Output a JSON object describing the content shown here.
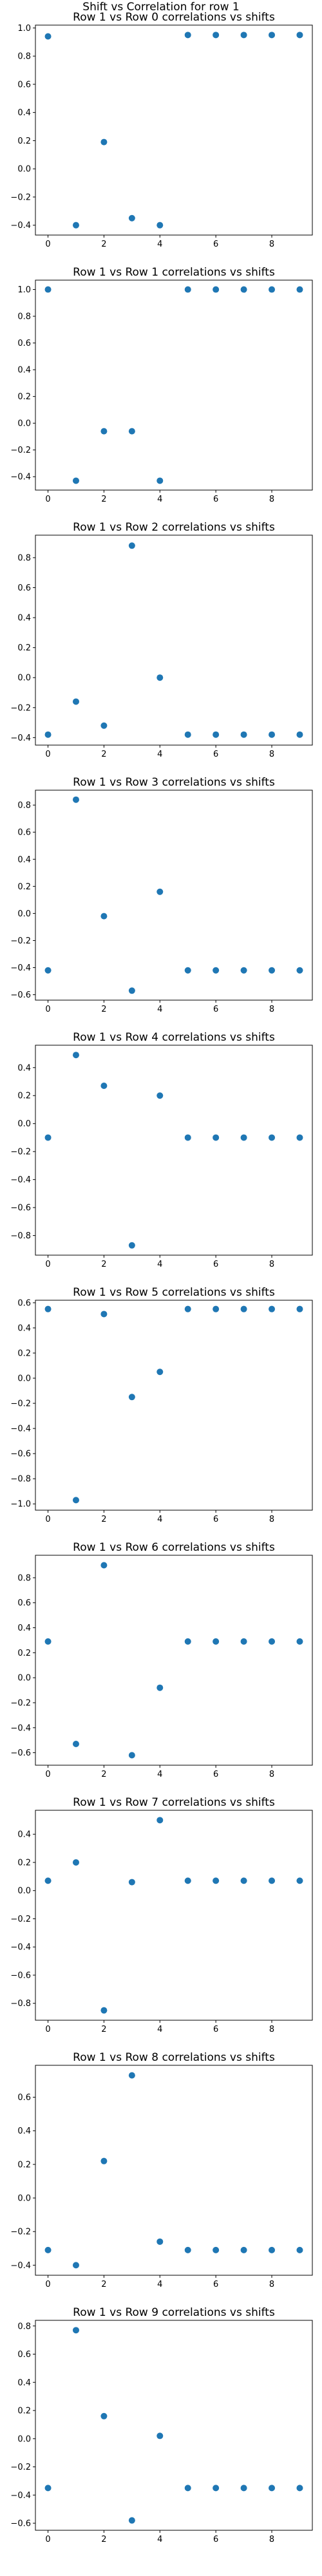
{
  "figure": {
    "suptitle": "Shift vs Correlation for row 1",
    "marker_color": "#1f77b4"
  },
  "chart_data": [
    {
      "type": "scatter",
      "title": "Row 1 vs Row 0 correlations vs shifts",
      "x": [
        0,
        1,
        2,
        3,
        4,
        5,
        6,
        7,
        8,
        9
      ],
      "y": [
        0.94,
        -0.4,
        0.19,
        -0.35,
        -0.4,
        0.95,
        0.95,
        0.95,
        0.95,
        0.95
      ],
      "ylim": [
        -0.47,
        1.02
      ],
      "yticks": [
        -0.4,
        -0.2,
        0.0,
        0.2,
        0.4,
        0.6,
        0.8,
        1.0
      ],
      "xticks": [
        0,
        2,
        4,
        6,
        8
      ],
      "xlim": [
        -0.45,
        9.45
      ],
      "grid": false
    },
    {
      "type": "scatter",
      "title": "Row 1 vs Row 1 correlations vs shifts",
      "x": [
        0,
        1,
        2,
        3,
        4,
        5,
        6,
        7,
        8,
        9
      ],
      "y": [
        1.0,
        -0.43,
        -0.06,
        -0.06,
        -0.43,
        1.0,
        1.0,
        1.0,
        1.0,
        1.0
      ],
      "ylim": [
        -0.5,
        1.07
      ],
      "yticks": [
        -0.4,
        -0.2,
        0.0,
        0.2,
        0.4,
        0.6,
        0.8,
        1.0
      ],
      "xticks": [
        0,
        2,
        4,
        6,
        8
      ],
      "xlim": [
        -0.45,
        9.45
      ],
      "grid": false
    },
    {
      "type": "scatter",
      "title": "Row 1 vs Row 2 correlations vs shifts",
      "x": [
        0,
        1,
        2,
        3,
        4,
        5,
        6,
        7,
        8,
        9
      ],
      "y": [
        -0.38,
        -0.16,
        -0.32,
        0.88,
        0.0,
        -0.38,
        -0.38,
        -0.38,
        -0.38,
        -0.38
      ],
      "ylim": [
        -0.45,
        0.95
      ],
      "yticks": [
        -0.4,
        -0.2,
        0.0,
        0.2,
        0.4,
        0.6,
        0.8
      ],
      "xticks": [
        0,
        2,
        4,
        6,
        8
      ],
      "xlim": [
        -0.45,
        9.45
      ],
      "grid": false
    },
    {
      "type": "scatter",
      "title": "Row 1 vs Row 3 correlations vs shifts",
      "x": [
        0,
        1,
        2,
        3,
        4,
        5,
        6,
        7,
        8,
        9
      ],
      "y": [
        -0.42,
        0.84,
        -0.02,
        -0.57,
        0.16,
        -0.42,
        -0.42,
        -0.42,
        -0.42,
        -0.42
      ],
      "ylim": [
        -0.64,
        0.91
      ],
      "yticks": [
        -0.6,
        -0.4,
        -0.2,
        0.0,
        0.2,
        0.4,
        0.6,
        0.8
      ],
      "xticks": [
        0,
        2,
        4,
        6,
        8
      ],
      "xlim": [
        -0.45,
        9.45
      ],
      "grid": false
    },
    {
      "type": "scatter",
      "title": "Row 1 vs Row 4 correlations vs shifts",
      "x": [
        0,
        1,
        2,
        3,
        4,
        5,
        6,
        7,
        8,
        9
      ],
      "y": [
        -0.1,
        0.49,
        0.27,
        -0.87,
        0.2,
        -0.1,
        -0.1,
        -0.1,
        -0.1,
        -0.1
      ],
      "ylim": [
        -0.94,
        0.56
      ],
      "yticks": [
        -0.8,
        -0.6,
        -0.4,
        -0.2,
        0.0,
        0.2,
        0.4
      ],
      "xticks": [
        0,
        2,
        4,
        6,
        8
      ],
      "xlim": [
        -0.45,
        9.45
      ],
      "grid": false
    },
    {
      "type": "scatter",
      "title": "Row 1 vs Row 5 correlations vs shifts",
      "x": [
        0,
        1,
        2,
        3,
        4,
        5,
        6,
        7,
        8,
        9
      ],
      "y": [
        0.55,
        -0.97,
        0.51,
        -0.15,
        0.05,
        0.55,
        0.55,
        0.55,
        0.55,
        0.55
      ],
      "ylim": [
        -1.05,
        0.62
      ],
      "yticks": [
        -1.0,
        -0.8,
        -0.6,
        -0.4,
        -0.2,
        0.0,
        0.2,
        0.4,
        0.6
      ],
      "xticks": [
        0,
        2,
        4,
        6,
        8
      ],
      "xlim": [
        -0.45,
        9.45
      ],
      "grid": false
    },
    {
      "type": "scatter",
      "title": "Row 1 vs Row 6 correlations vs shifts",
      "x": [
        0,
        1,
        2,
        3,
        4,
        5,
        6,
        7,
        8,
        9
      ],
      "y": [
        0.29,
        -0.53,
        0.9,
        -0.62,
        -0.08,
        0.29,
        0.29,
        0.29,
        0.29,
        0.29
      ],
      "ylim": [
        -0.7,
        0.98
      ],
      "yticks": [
        -0.6,
        -0.4,
        -0.2,
        0.0,
        0.2,
        0.4,
        0.6,
        0.8
      ],
      "xticks": [
        0,
        2,
        4,
        6,
        8
      ],
      "xlim": [
        -0.45,
        9.45
      ],
      "grid": false
    },
    {
      "type": "scatter",
      "title": "Row 1 vs Row 7 correlations vs shifts",
      "x": [
        0,
        1,
        2,
        3,
        4,
        5,
        6,
        7,
        8,
        9
      ],
      "y": [
        0.07,
        0.2,
        -0.85,
        0.06,
        0.5,
        0.07,
        0.07,
        0.07,
        0.07,
        0.07
      ],
      "ylim": [
        -0.92,
        0.57
      ],
      "yticks": [
        -0.8,
        -0.6,
        -0.4,
        -0.2,
        0.0,
        0.2,
        0.4
      ],
      "xticks": [
        0,
        2,
        4,
        6,
        8
      ],
      "xlim": [
        -0.45,
        9.45
      ],
      "grid": false
    },
    {
      "type": "scatter",
      "title": "Row 1 vs Row 8 correlations vs shifts",
      "x": [
        0,
        1,
        2,
        3,
        4,
        5,
        6,
        7,
        8,
        9
      ],
      "y": [
        -0.31,
        -0.4,
        0.22,
        0.73,
        -0.26,
        -0.31,
        -0.31,
        -0.31,
        -0.31,
        -0.31
      ],
      "ylim": [
        -0.46,
        0.79
      ],
      "yticks": [
        -0.4,
        -0.2,
        0.0,
        0.2,
        0.4,
        0.6
      ],
      "xticks": [
        0,
        2,
        4,
        6,
        8
      ],
      "xlim": [
        -0.45,
        9.45
      ],
      "grid": false
    },
    {
      "type": "scatter",
      "title": "Row 1 vs Row 9 correlations vs shifts",
      "x": [
        0,
        1,
        2,
        3,
        4,
        5,
        6,
        7,
        8,
        9
      ],
      "y": [
        -0.35,
        0.77,
        0.16,
        -0.58,
        0.02,
        -0.35,
        -0.35,
        -0.35,
        -0.35,
        -0.35
      ],
      "ylim": [
        -0.65,
        0.84
      ],
      "yticks": [
        -0.6,
        -0.4,
        -0.2,
        0.0,
        0.2,
        0.4,
        0.6,
        0.8
      ],
      "xticks": [
        0,
        2,
        4,
        6,
        8
      ],
      "xlim": [
        -0.45,
        9.45
      ],
      "grid": false
    }
  ]
}
